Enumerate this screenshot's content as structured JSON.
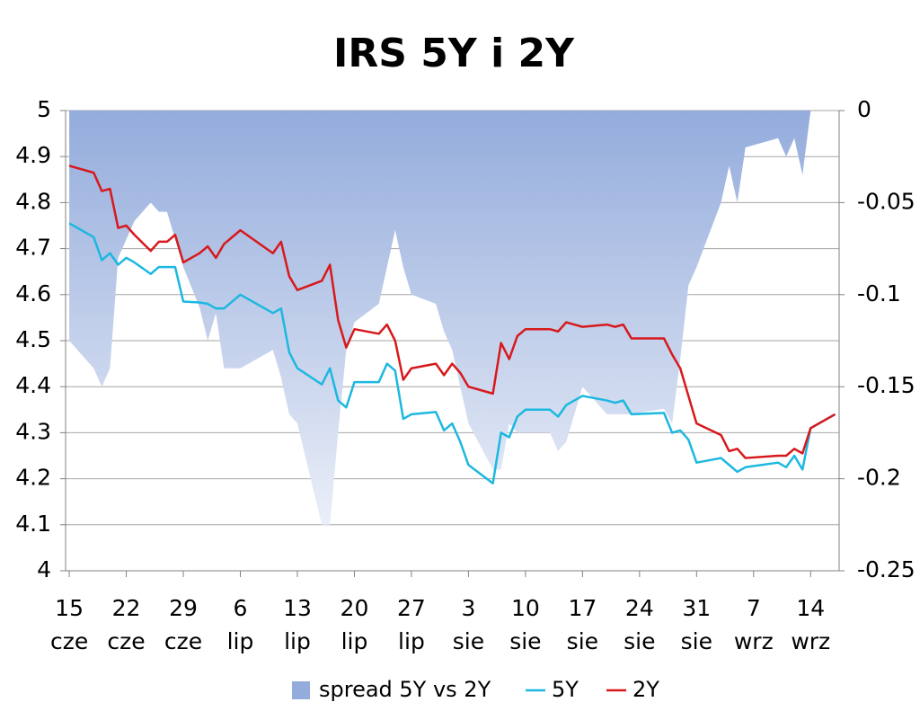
{
  "chart_data": {
    "type": "line",
    "title": "IRS 5Y i 2Y",
    "x": [
      0,
      3,
      4,
      5,
      6,
      7,
      8,
      10,
      11,
      12,
      13,
      14,
      16,
      17,
      18,
      19,
      21,
      25,
      26,
      27,
      28,
      31,
      32,
      33,
      34,
      35,
      38,
      39,
      40,
      41,
      42,
      45,
      46,
      47,
      48,
      49,
      52,
      53,
      54,
      55,
      56,
      59,
      60,
      61,
      63,
      66,
      67,
      68,
      69,
      73,
      74,
      75,
      76,
      77,
      80,
      81,
      82,
      83,
      87,
      88,
      89,
      90,
      91,
      94
    ],
    "series": [
      {
        "name": "spread 5Y vs 2Y",
        "type": "area",
        "axis": "y2",
        "color": "#94acdc",
        "values": [
          -0.125,
          -0.14,
          -0.15,
          -0.14,
          -0.08,
          -0.07,
          -0.06,
          -0.05,
          -0.055,
          -0.055,
          -0.07,
          -0.085,
          -0.107,
          -0.125,
          -0.11,
          -0.14,
          -0.14,
          -0.13,
          -0.145,
          -0.165,
          -0.17,
          -0.225,
          -0.225,
          -0.175,
          -0.13,
          -0.115,
          -0.105,
          -0.085,
          -0.065,
          -0.085,
          -0.1,
          -0.105,
          -0.12,
          -0.13,
          -0.15,
          -0.17,
          -0.195,
          -0.195,
          -0.17,
          -0.175,
          -0.175,
          -0.175,
          -0.185,
          -0.18,
          -0.15,
          -0.165,
          -0.165,
          -0.165,
          -0.165,
          -0.162,
          -0.17,
          -0.135,
          -0.095,
          -0.085,
          -0.05,
          -0.03,
          -0.05,
          -0.02,
          -0.015,
          -0.025,
          -0.015,
          -0.035,
          0,
          0
        ]
      },
      {
        "name": "5Y",
        "type": "line",
        "color": "#1cb8e0",
        "values": [
          4.755,
          4.725,
          4.675,
          4.69,
          4.665,
          4.68,
          4.67,
          4.645,
          4.66,
          4.66,
          4.66,
          4.585,
          4.583,
          4.58,
          4.57,
          4.57,
          4.6,
          4.56,
          4.57,
          4.475,
          4.44,
          4.405,
          4.44,
          4.37,
          4.355,
          4.41,
          4.41,
          4.45,
          4.435,
          4.33,
          4.34,
          4.345,
          4.305,
          4.32,
          4.28,
          4.23,
          4.19,
          4.3,
          4.29,
          4.335,
          4.35,
          4.35,
          4.335,
          4.36,
          4.38,
          4.37,
          4.365,
          4.37,
          4.34,
          4.343,
          4.3,
          4.305,
          4.285,
          4.235,
          4.245,
          4.23,
          4.215,
          4.225,
          4.235,
          4.225,
          4.25,
          4.22,
          4.31,
          4.34
        ]
      },
      {
        "name": "2Y",
        "type": "line",
        "color": "#d7191c",
        "values": [
          4.88,
          4.865,
          4.825,
          4.83,
          4.745,
          4.75,
          4.73,
          4.695,
          4.715,
          4.715,
          4.73,
          4.67,
          4.69,
          4.705,
          4.68,
          4.71,
          4.74,
          4.69,
          4.715,
          4.64,
          4.61,
          4.63,
          4.665,
          4.545,
          4.485,
          4.525,
          4.515,
          4.535,
          4.5,
          4.415,
          4.44,
          4.45,
          4.425,
          4.45,
          4.43,
          4.4,
          4.385,
          4.495,
          4.46,
          4.51,
          4.525,
          4.525,
          4.52,
          4.54,
          4.53,
          4.535,
          4.53,
          4.535,
          4.505,
          4.505,
          4.47,
          4.44,
          4.38,
          4.32,
          4.295,
          4.26,
          4.265,
          4.245,
          4.25,
          4.25,
          4.265,
          4.255,
          4.31,
          4.34
        ]
      }
    ],
    "xlim": [
      -0.45,
      94.5
    ],
    "xticks": [
      {
        "value": 0,
        "label": "15",
        "sublabel": "cze"
      },
      {
        "value": 7,
        "label": "22",
        "sublabel": "cze"
      },
      {
        "value": 14,
        "label": "29",
        "sublabel": "cze"
      },
      {
        "value": 21,
        "label": "6",
        "sublabel": "lip"
      },
      {
        "value": 28,
        "label": "13",
        "sublabel": "lip"
      },
      {
        "value": 35,
        "label": "20",
        "sublabel": "lip"
      },
      {
        "value": 42,
        "label": "27",
        "sublabel": "lip"
      },
      {
        "value": 49,
        "label": "3",
        "sublabel": "sie"
      },
      {
        "value": 56,
        "label": "10",
        "sublabel": "sie"
      },
      {
        "value": 63,
        "label": "17",
        "sublabel": "sie"
      },
      {
        "value": 70,
        "label": "24",
        "sublabel": "sie"
      },
      {
        "value": 77,
        "label": "31",
        "sublabel": "sie"
      },
      {
        "value": 84,
        "label": "7",
        "sublabel": "wrz"
      },
      {
        "value": 91,
        "label": "14",
        "sublabel": "wrz"
      }
    ],
    "ylim": [
      4,
      5
    ],
    "yticks": [
      4,
      4.1,
      4.2,
      4.3,
      4.4,
      4.5,
      4.6,
      4.7,
      4.8,
      4.9,
      5
    ],
    "y2lim": [
      -0.25,
      0
    ],
    "y2ticks": [
      -0.25,
      -0.2,
      -0.15,
      -0.1,
      -0.05,
      0
    ],
    "grid": true
  }
}
